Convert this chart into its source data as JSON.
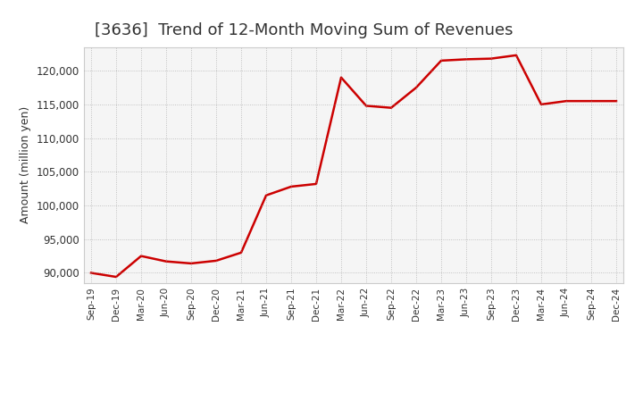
{
  "title": "[3636]  Trend of 12-Month Moving Sum of Revenues",
  "ylabel": "Amount (million yen)",
  "line_color": "#cc0000",
  "background_color": "#ffffff",
  "plot_bg_color": "#f5f5f5",
  "grid_color": "#999999",
  "title_color": "#333333",
  "ylim": [
    88500,
    123500
  ],
  "yticks": [
    90000,
    95000,
    100000,
    105000,
    110000,
    115000,
    120000
  ],
  "x_labels": [
    "Sep-19",
    "Dec-19",
    "Mar-20",
    "Jun-20",
    "Sep-20",
    "Dec-20",
    "Mar-21",
    "Jun-21",
    "Sep-21",
    "Dec-21",
    "Mar-22",
    "Jun-22",
    "Sep-22",
    "Dec-22",
    "Mar-23",
    "Jun-23",
    "Sep-23",
    "Dec-23",
    "Mar-24",
    "Jun-24",
    "Sep-24",
    "Dec-24"
  ],
  "values": [
    90000,
    89400,
    92500,
    91700,
    91400,
    91800,
    93000,
    101500,
    102800,
    103200,
    119000,
    114800,
    114500,
    117500,
    121500,
    121700,
    121800,
    122300,
    115000,
    115500,
    115500,
    115500
  ],
  "title_fontsize": 13,
  "ylabel_fontsize": 9,
  "tick_fontsize": 8.5,
  "xtick_fontsize": 7.5
}
